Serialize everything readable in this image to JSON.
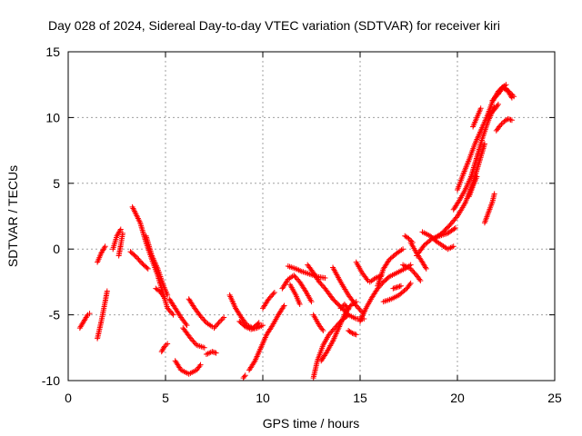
{
  "chart_data": {
    "type": "scatter",
    "title": "Day 028 of 2024, Sidereal Day-to-day VTEC variation (SDTVAR) for receiver kiri",
    "xlabel": "GPS time / hours",
    "ylabel": "SDTVAR / TECUs",
    "xlim": [
      0,
      25
    ],
    "ylim": [
      -10,
      15
    ],
    "xticks": [
      "0",
      "5",
      "10",
      "15",
      "20",
      "25"
    ],
    "yticks": [
      "-10",
      "-5",
      "0",
      "5",
      "10",
      "15"
    ],
    "grid": true,
    "marker": "+",
    "color": "#ff0000",
    "segments": [
      [
        [
          0.6,
          -6.0
        ],
        [
          0.8,
          -5.5
        ],
        [
          1.0,
          -5.0
        ],
        [
          1.1,
          -4.9
        ]
      ],
      [
        [
          1.5,
          -6.8
        ],
        [
          1.7,
          -5.5
        ],
        [
          1.9,
          -4.0
        ],
        [
          2.0,
          -3.2
        ]
      ],
      [
        [
          1.5,
          -1.0
        ],
        [
          1.7,
          -0.3
        ],
        [
          1.9,
          0.2
        ]
      ],
      [
        [
          2.3,
          0.0
        ],
        [
          2.5,
          1.0
        ],
        [
          2.7,
          1.5
        ]
      ],
      [
        [
          2.6,
          -0.5
        ],
        [
          2.7,
          0.3
        ],
        [
          2.8,
          1.2
        ]
      ],
      [
        [
          3.2,
          -0.2
        ],
        [
          3.5,
          -0.6
        ],
        [
          3.8,
          -1.1
        ],
        [
          4.1,
          -1.5
        ]
      ],
      [
        [
          3.3,
          3.2
        ],
        [
          3.7,
          2.0
        ],
        [
          4.0,
          0.5
        ],
        [
          4.3,
          -0.8
        ],
        [
          4.6,
          -2.0
        ],
        [
          4.9,
          -3.5
        ],
        [
          5.1,
          -4.5
        ],
        [
          5.4,
          -5.0
        ]
      ],
      [
        [
          4.0,
          1.0
        ],
        [
          4.3,
          -0.5
        ],
        [
          4.6,
          -1.5
        ],
        [
          4.9,
          -2.8
        ],
        [
          5.1,
          -3.5
        ]
      ],
      [
        [
          4.5,
          -3.0
        ],
        [
          4.7,
          -3.2
        ],
        [
          4.9,
          -3.6
        ]
      ],
      [
        [
          4.8,
          -7.8
        ],
        [
          4.95,
          -7.4
        ],
        [
          5.1,
          -7.2
        ]
      ],
      [
        [
          5.2,
          -3.8
        ],
        [
          5.5,
          -4.5
        ],
        [
          5.8,
          -5.2
        ],
        [
          6.1,
          -5.8
        ]
      ],
      [
        [
          5.5,
          -8.5
        ],
        [
          5.8,
          -9.2
        ],
        [
          6.2,
          -9.5
        ],
        [
          6.6,
          -9.2
        ],
        [
          6.8,
          -8.8
        ]
      ],
      [
        [
          5.9,
          -6.0
        ],
        [
          6.3,
          -6.8
        ],
        [
          6.6,
          -7.3
        ],
        [
          7.0,
          -7.5
        ]
      ],
      [
        [
          6.2,
          -3.8
        ],
        [
          6.5,
          -4.5
        ],
        [
          6.8,
          -5.1
        ],
        [
          7.1,
          -5.6
        ],
        [
          7.4,
          -5.9
        ]
      ],
      [
        [
          7.1,
          -8.0
        ],
        [
          7.4,
          -7.8
        ],
        [
          7.6,
          -7.9
        ]
      ],
      [
        [
          7.5,
          -6.0
        ],
        [
          7.8,
          -5.5
        ],
        [
          8.0,
          -5.2
        ]
      ],
      [
        [
          8.3,
          -3.5
        ],
        [
          8.6,
          -4.5
        ],
        [
          8.9,
          -5.2
        ],
        [
          9.2,
          -5.8
        ],
        [
          9.5,
          -6.0
        ],
        [
          9.8,
          -5.6
        ]
      ],
      [
        [
          8.8,
          -5.5
        ],
        [
          9.1,
          -5.9
        ],
        [
          9.4,
          -6.1
        ],
        [
          9.7,
          -6.0
        ],
        [
          10.0,
          -5.8
        ]
      ],
      [
        [
          9.3,
          -9.2
        ],
        [
          9.6,
          -8.5
        ],
        [
          9.9,
          -7.5
        ],
        [
          10.2,
          -6.5
        ],
        [
          10.5,
          -5.8
        ],
        [
          10.8,
          -5.0
        ],
        [
          11.1,
          -4.3
        ]
      ],
      [
        [
          9.0,
          -9.8
        ],
        [
          9.1,
          -9.6
        ]
      ],
      [
        [
          10.0,
          -4.5
        ],
        [
          10.3,
          -3.8
        ],
        [
          10.6,
          -3.3
        ]
      ],
      [
        [
          11.0,
          -3.0
        ],
        [
          11.3,
          -2.3
        ],
        [
          11.6,
          -2.0
        ],
        [
          11.9,
          -2.5
        ],
        [
          12.2,
          -3.2
        ],
        [
          12.5,
          -4.0
        ]
      ],
      [
        [
          11.4,
          -2.7
        ],
        [
          11.7,
          -3.5
        ],
        [
          11.9,
          -4.2
        ]
      ],
      [
        [
          11.3,
          -1.3
        ],
        [
          11.7,
          -1.5
        ],
        [
          12.0,
          -1.7
        ],
        [
          12.4,
          -1.9
        ],
        [
          12.8,
          -2.1
        ],
        [
          13.2,
          -2.2
        ]
      ],
      [
        [
          12.3,
          -1.2
        ],
        [
          12.6,
          -1.8
        ],
        [
          12.9,
          -2.5
        ],
        [
          13.2,
          -3.0
        ],
        [
          13.6,
          -3.8
        ],
        [
          14.0,
          -4.4
        ],
        [
          14.4,
          -5.0
        ],
        [
          14.8,
          -5.3
        ],
        [
          15.2,
          -5.3
        ]
      ],
      [
        [
          12.6,
          -9.8
        ],
        [
          12.8,
          -8.5
        ],
        [
          13.1,
          -7.3
        ],
        [
          13.4,
          -6.5
        ],
        [
          13.7,
          -6.0
        ],
        [
          14.0,
          -5.5
        ],
        [
          14.4,
          -5.0
        ]
      ],
      [
        [
          13.0,
          -8.5
        ],
        [
          13.3,
          -7.8
        ],
        [
          13.6,
          -7.0
        ],
        [
          13.9,
          -6.0
        ],
        [
          14.2,
          -5.0
        ],
        [
          14.5,
          -4.3
        ],
        [
          14.8,
          -4.0
        ]
      ],
      [
        [
          12.6,
          -5.0
        ],
        [
          12.9,
          -5.8
        ],
        [
          13.1,
          -6.2
        ]
      ],
      [
        [
          13.6,
          -1.4
        ],
        [
          14.0,
          -2.5
        ],
        [
          14.4,
          -3.5
        ],
        [
          14.8,
          -4.3
        ],
        [
          15.1,
          -4.8
        ]
      ],
      [
        [
          14.0,
          -4.5
        ],
        [
          14.2,
          -4.2
        ],
        [
          14.4,
          -4.6
        ]
      ],
      [
        [
          14.4,
          -6.2
        ],
        [
          14.6,
          -6.4
        ],
        [
          14.8,
          -6.5
        ]
      ],
      [
        [
          14.8,
          -1.0
        ],
        [
          15.1,
          -1.8
        ],
        [
          15.4,
          -2.4
        ]
      ],
      [
        [
          15.0,
          -5.5
        ],
        [
          15.3,
          -4.5
        ],
        [
          15.6,
          -3.7
        ],
        [
          15.9,
          -3.0
        ],
        [
          16.2,
          -2.5
        ],
        [
          16.5,
          -2.1
        ],
        [
          16.9,
          -1.8
        ],
        [
          17.3,
          -1.5
        ],
        [
          17.6,
          -1.2
        ]
      ],
      [
        [
          15.5,
          -2.5
        ],
        [
          15.8,
          -2.2
        ],
        [
          16.1,
          -2.0
        ]
      ],
      [
        [
          15.9,
          -2.8
        ],
        [
          16.2,
          -1.5
        ],
        [
          16.5,
          -0.8
        ],
        [
          16.9,
          -0.3
        ],
        [
          17.2,
          0.0
        ]
      ],
      [
        [
          16.2,
          -4.0
        ],
        [
          16.6,
          -3.8
        ],
        [
          17.0,
          -3.5
        ],
        [
          17.4,
          -3.0
        ],
        [
          17.6,
          -2.6
        ]
      ],
      [
        [
          16.7,
          -3.0
        ],
        [
          16.9,
          -2.9
        ],
        [
          17.1,
          -2.8
        ]
      ],
      [
        [
          17.2,
          -1.2
        ],
        [
          17.6,
          -1.5
        ],
        [
          17.9,
          -2.0
        ],
        [
          18.1,
          -2.4
        ]
      ],
      [
        [
          17.6,
          0.5
        ],
        [
          17.9,
          -0.3
        ],
        [
          18.2,
          -1.0
        ],
        [
          18.4,
          -1.5
        ]
      ],
      [
        [
          17.3,
          1.0
        ],
        [
          17.5,
          0.8
        ],
        [
          17.7,
          0.5
        ]
      ],
      [
        [
          17.9,
          -0.5
        ],
        [
          18.3,
          0.3
        ],
        [
          18.7,
          0.8
        ],
        [
          19.1,
          1.0
        ],
        [
          19.5,
          1.2
        ],
        [
          19.9,
          1.6
        ]
      ],
      [
        [
          18.2,
          1.3
        ],
        [
          18.6,
          1.0
        ],
        [
          18.9,
          0.6
        ],
        [
          19.2,
          0.3
        ],
        [
          19.5,
          0.0
        ],
        [
          19.8,
          0.2
        ]
      ],
      [
        [
          18.8,
          0.8
        ],
        [
          19.2,
          1.2
        ],
        [
          19.6,
          1.8
        ],
        [
          20.0,
          2.5
        ],
        [
          20.4,
          3.5
        ],
        [
          20.8,
          5.0
        ],
        [
          21.1,
          6.5
        ],
        [
          21.4,
          8.0
        ]
      ],
      [
        [
          19.8,
          3.0
        ],
        [
          20.1,
          3.7
        ],
        [
          20.4,
          4.5
        ],
        [
          20.7,
          5.5
        ],
        [
          21.0,
          7.0
        ],
        [
          21.3,
          8.5
        ],
        [
          21.6,
          9.8
        ],
        [
          21.9,
          10.8
        ]
      ],
      [
        [
          20.0,
          4.5
        ],
        [
          20.3,
          5.7
        ],
        [
          20.6,
          6.8
        ],
        [
          20.9,
          8.0
        ],
        [
          21.2,
          9.0
        ],
        [
          21.5,
          10.0
        ],
        [
          21.8,
          11.2
        ],
        [
          22.1,
          12.0
        ],
        [
          22.4,
          12.4
        ]
      ],
      [
        [
          20.6,
          4.0
        ],
        [
          20.8,
          4.8
        ],
        [
          21.0,
          5.5
        ]
      ],
      [
        [
          20.8,
          9.3
        ],
        [
          21.0,
          10.0
        ],
        [
          21.2,
          10.7
        ]
      ],
      [
        [
          21.4,
          2.0
        ],
        [
          21.6,
          2.8
        ],
        [
          21.8,
          3.6
        ],
        [
          21.9,
          4.2
        ]
      ],
      [
        [
          21.6,
          10.2
        ],
        [
          21.9,
          10.6
        ],
        [
          22.1,
          11.0
        ]
      ],
      [
        [
          21.8,
          11.3
        ],
        [
          22.1,
          11.8
        ],
        [
          22.3,
          12.2
        ],
        [
          22.5,
          12.5
        ]
      ],
      [
        [
          22.1,
          11.8
        ],
        [
          22.3,
          12.3
        ],
        [
          22.5,
          12.2
        ],
        [
          22.7,
          11.9
        ],
        [
          22.9,
          11.6
        ]
      ],
      [
        [
          22.4,
          12.2
        ],
        [
          22.6,
          12.0
        ],
        [
          22.8,
          11.5
        ]
      ],
      [
        [
          22.0,
          9.0
        ],
        [
          22.2,
          9.4
        ],
        [
          22.4,
          9.7
        ],
        [
          22.6,
          9.9
        ],
        [
          22.8,
          9.8
        ]
      ]
    ]
  }
}
